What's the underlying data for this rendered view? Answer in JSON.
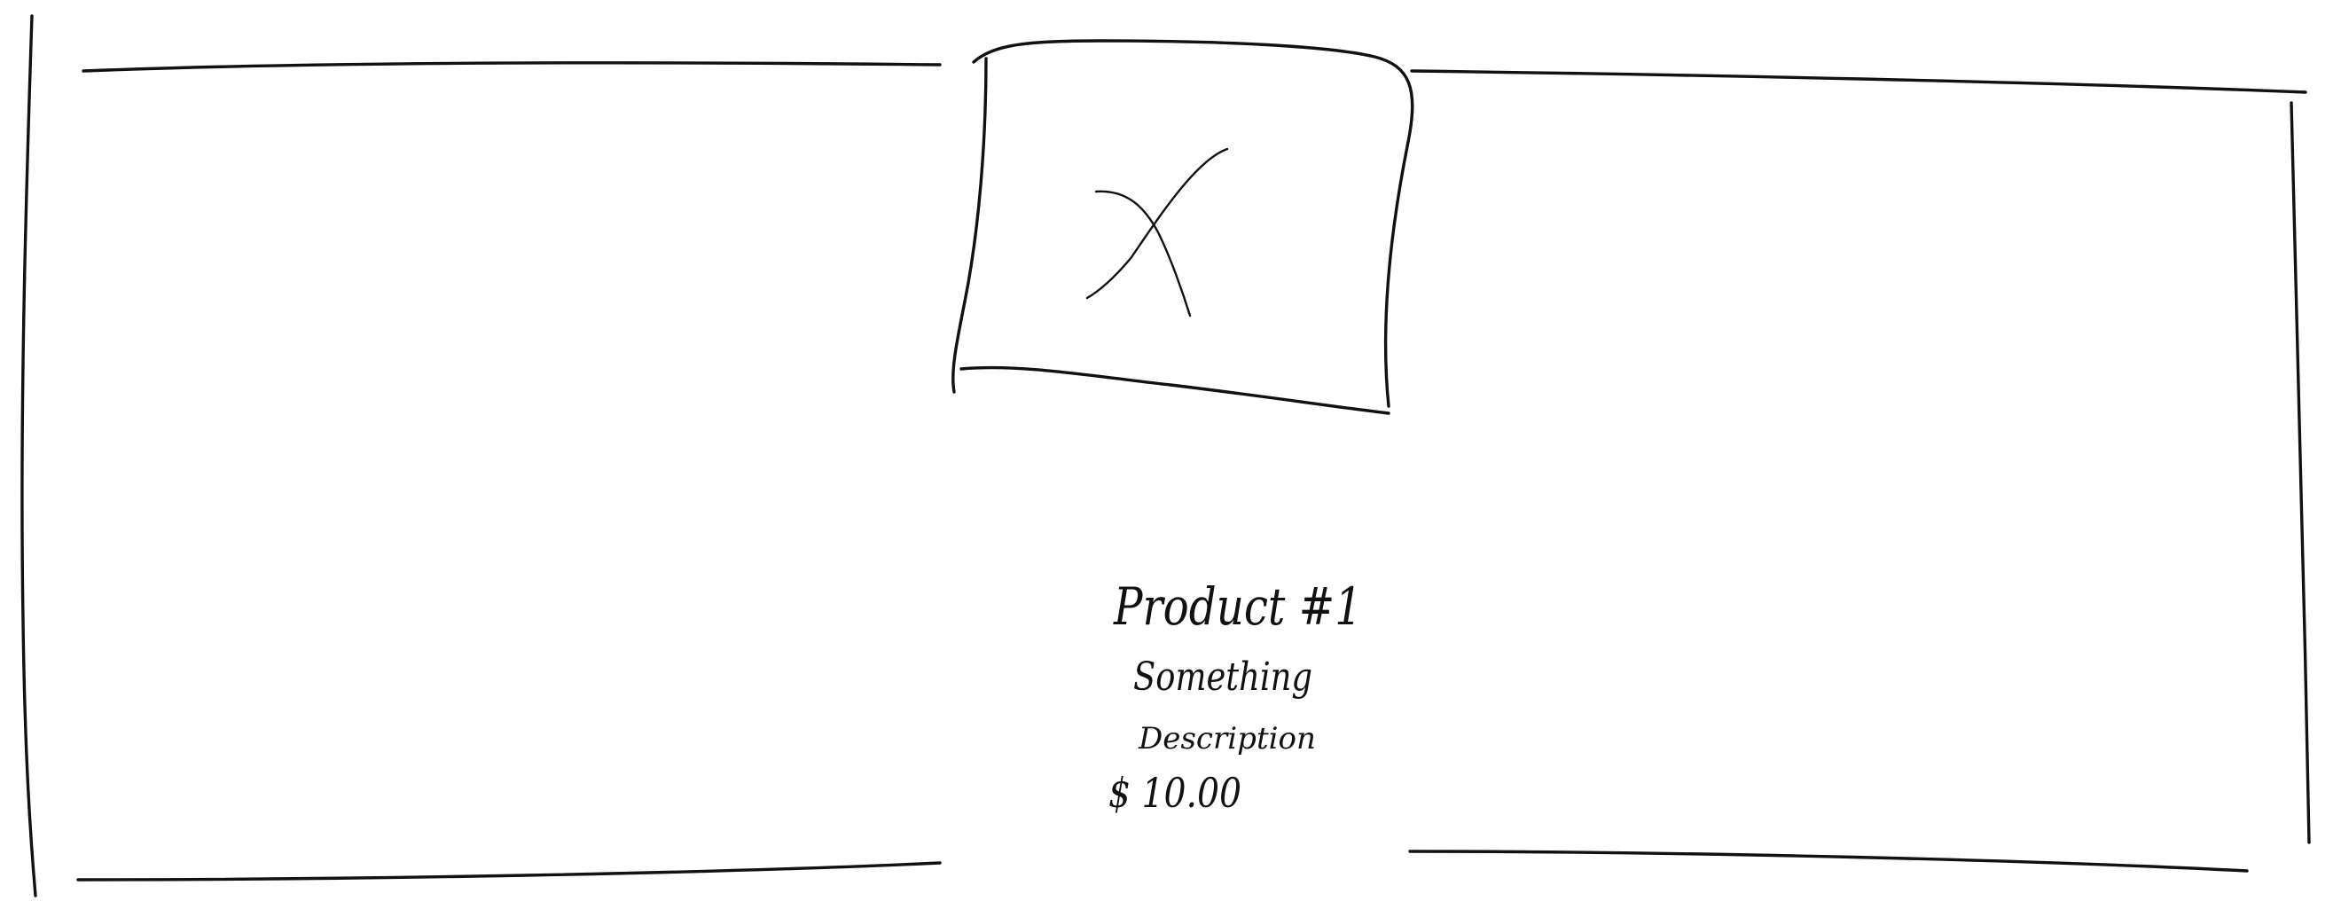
{
  "product_card": {
    "image_placeholder_icon": "image-placeholder-x-icon",
    "name": "Product #1",
    "description_line1": "Something",
    "description_line2": "Description",
    "price": "$ 10.00"
  },
  "colors": {
    "ink": "#111111",
    "paper": "#ffffff"
  }
}
